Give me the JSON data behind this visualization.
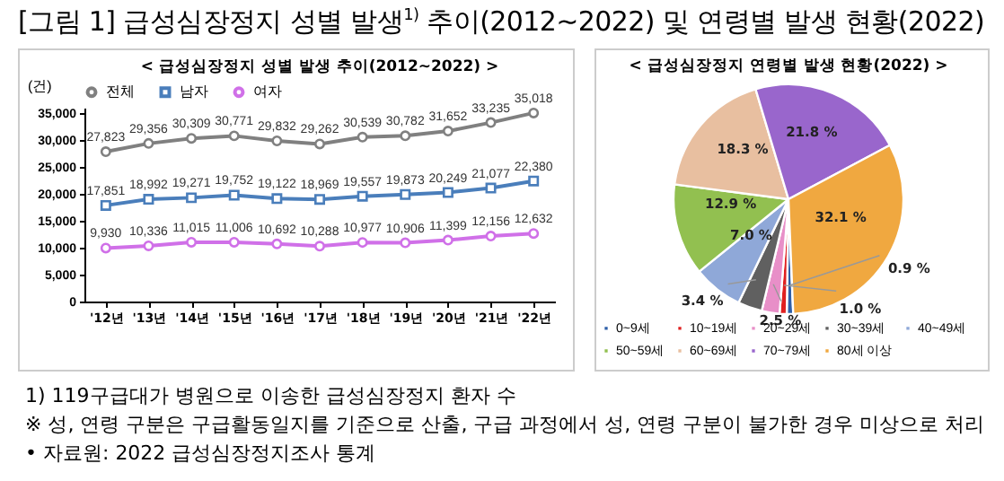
{
  "chart_data": [
    {
      "type": "line",
      "title": "[그림 1] 급성심장정지 성별 발생$^{1)}$ 추이(2012~2022) 및 연령별 발생 현황(2022)",
      "subtitle": "< 급성심장정지 성별 발생 추이(2012~2022) >",
      "ylabel": "(건)",
      "categories": [
        "'12년",
        "'13년",
        "'14년",
        "'15년",
        "'16년",
        "'17년",
        "'18년",
        "'19년",
        "'20년",
        "'21년",
        "'22년"
      ],
      "series": [
        {
          "name": "전체",
          "color": "#808080",
          "marker": "circle",
          "values": [
            27823,
            29356,
            30309,
            30771,
            29832,
            29262,
            30539,
            30782,
            31652,
            33235,
            35018
          ],
          "value_labels": [
            "27,823",
            "29,356",
            "30,309",
            "30,771",
            "29,832",
            "29,262",
            "30,539",
            "30,782",
            "31,652",
            "33,235",
            "35,018"
          ]
        },
        {
          "name": "남자",
          "color": "#4a7ebb",
          "marker": "square",
          "values": [
            17851,
            18992,
            19271,
            19752,
            19122,
            18969,
            19557,
            19873,
            20249,
            21077,
            22380
          ],
          "value_labels": [
            "17,851",
            "18,992",
            "19,271",
            "19,752",
            "19,122",
            "18,969",
            "19,557",
            "19,873",
            "20,249",
            "21,077",
            "22,380"
          ]
        },
        {
          "name": "여자",
          "color": "#d070e8",
          "marker": "circle",
          "values": [
            9930,
            10336,
            11015,
            11006,
            10692,
            10288,
            10977,
            10906,
            11399,
            12156,
            12632
          ],
          "value_labels": [
            "9,930",
            "10,336",
            "11,015",
            "11,006",
            "10,692",
            "10,288",
            "10,977",
            "10,906",
            "11,399",
            "12,156",
            "12,632"
          ]
        }
      ],
      "ylim": [
        0,
        36000
      ],
      "yticks": [
        {
          "value": 0,
          "label": "0"
        },
        {
          "value": 5000,
          "label": "5,000"
        },
        {
          "value": 10000,
          "label": "10,000"
        },
        {
          "value": 15000,
          "label": "15,000"
        },
        {
          "value": 20000,
          "label": "20,000"
        },
        {
          "value": 25000,
          "label": "25,000"
        },
        {
          "value": 30000,
          "label": "30,000"
        },
        {
          "value": 35000,
          "label": "35,000"
        }
      ],
      "data_labels": true,
      "legend": "top",
      "grid": false,
      "line_style": "solid",
      "annotations": [
        "1) 119구급대가 병원으로 이송한 급성심장정지 환자 수",
        "※ 성, 연령 구분은 구급활동일지를 기준으로 산출, 구급 과정에서 성, 연령 구분이 불가한 경우 미상으로 처리",
        "• 자료원: 2022 급성심장정지조사 통계"
      ]
    },
    {
      "type": "pie",
      "title": "< 급성심장정지 연령별 발생 현황(2022) >",
      "categories": [
        "0~9세",
        "10~19세",
        "20~29세",
        "30~39세",
        "40~49세",
        "50~59세",
        "60~69세",
        "70~79세",
        "80세 이상"
      ],
      "values": [
        0.9,
        1.0,
        2.5,
        3.4,
        7.0,
        12.9,
        18.3,
        21.8,
        32.1
      ],
      "value_labels": [
        "0.9 %",
        "1.0 %",
        "2.5 %",
        "3.4 %",
        "7.0 %",
        "12.9 %",
        "18.3 %",
        "21.8 %",
        "32.1 %"
      ],
      "colors": [
        "#2e5fa8",
        "#e02020",
        "#e88fc8",
        "#606060",
        "#8fa8d8",
        "#92c050",
        "#e8bfa0",
        "#9966cc",
        "#f0a840"
      ],
      "legend": "bottom"
    }
  ]
}
